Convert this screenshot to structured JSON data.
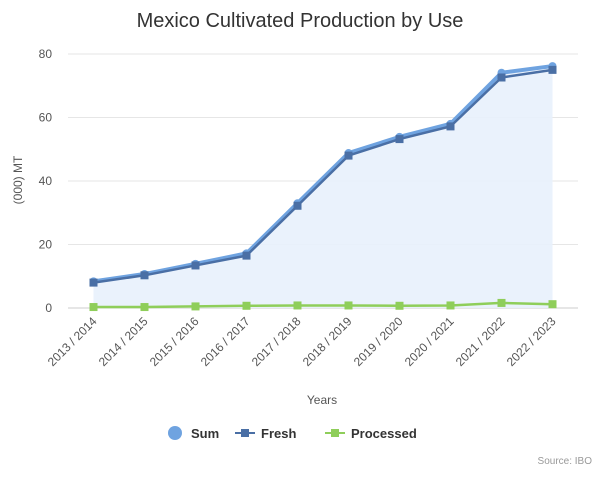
{
  "chart_data": {
    "type": "line",
    "title": "Mexico Cultivated Production by Use",
    "xlabel": "Years",
    "ylabel": "(000) MT",
    "categories": [
      "2013 / 2014",
      "2014 / 2015",
      "2015 / 2016",
      "2016 / 2017",
      "2017 / 2018",
      "2018 / 2019",
      "2019 / 2020",
      "2020 / 2021",
      "2021 / 2022",
      "2022 / 2023"
    ],
    "ylim": [
      0,
      80
    ],
    "yticks": [
      "0",
      "20",
      "40",
      "60",
      "80"
    ],
    "grid": true,
    "legend_position": "bottom",
    "series": [
      {
        "name": "Sum",
        "color": "#6fa3e0",
        "marker": "circle",
        "area": true,
        "values": [
          8.4,
          10.7,
          13.9,
          17.2,
          33.0,
          48.8,
          53.9,
          58.0,
          74.1,
          76.2
        ]
      },
      {
        "name": "Fresh",
        "color": "#4a6fa5",
        "marker": "square",
        "values": [
          8.0,
          10.3,
          13.4,
          16.5,
          32.2,
          48.0,
          53.2,
          57.2,
          72.6,
          75.0
        ]
      },
      {
        "name": "Processed",
        "color": "#8fce5a",
        "marker": "square",
        "values": [
          0.3,
          0.3,
          0.5,
          0.7,
          0.8,
          0.8,
          0.7,
          0.8,
          1.6,
          1.2
        ]
      }
    ],
    "credit": "Source: IBO"
  }
}
